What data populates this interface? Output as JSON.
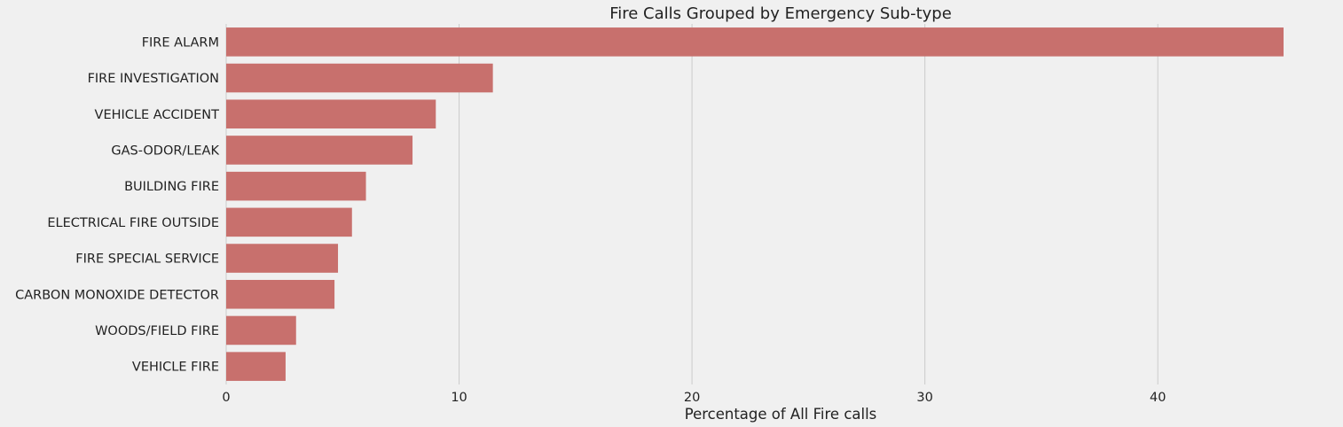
{
  "chart_data": {
    "type": "bar",
    "orientation": "horizontal",
    "title": "Fire Calls Grouped by Emergency Sub-type",
    "xlabel": "Percentage of All Fire calls",
    "ylabel": "",
    "categories": [
      "FIRE ALARM",
      "FIRE INVESTIGATION",
      "VEHICLE ACCIDENT",
      "GAS-ODOR/LEAK",
      "BUILDING FIRE",
      "ELECTRICAL FIRE OUTSIDE",
      "FIRE SPECIAL SERVICE",
      "CARBON MONOXIDE DETECTOR",
      "WOODS/FIELD FIRE",
      "VEHICLE FIRE"
    ],
    "values": [
      45.4,
      11.45,
      9.0,
      8.0,
      6.0,
      5.4,
      4.8,
      4.65,
      3.0,
      2.55
    ],
    "xlim": [
      0,
      47.8
    ],
    "xticks": [
      0,
      10,
      20,
      30,
      40
    ],
    "xtick_labels": [
      "0",
      "10",
      "20",
      "30",
      "40"
    ],
    "grid": "vertical",
    "legend": "none",
    "colors": {
      "bar": "#c8706d",
      "background": "#f0f0f0",
      "grid": "#cbcbcb",
      "text": "#222222"
    }
  }
}
